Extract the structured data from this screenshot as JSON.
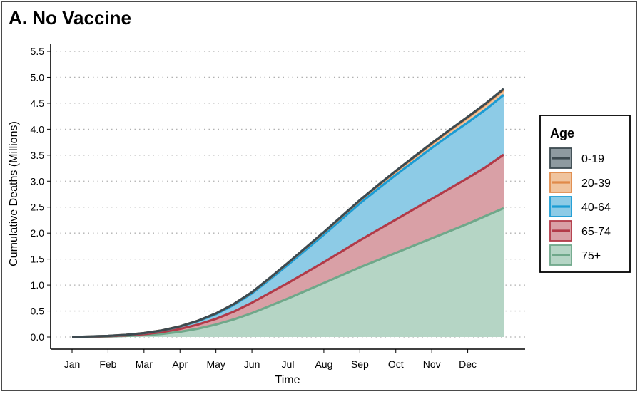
{
  "title": "A. No Vaccine",
  "chart_data": {
    "type": "area",
    "title": "A. No Vaccine",
    "xlabel": "Time",
    "ylabel": "Cumulative Deaths (Millions)",
    "ylim": [
      0,
      5.5
    ],
    "yticks": [
      "0.0",
      "0.5",
      "1.0",
      "1.5",
      "2.0",
      "2.5",
      "3.0",
      "3.5",
      "4.0",
      "4.5",
      "5.0",
      "5.5"
    ],
    "categories": [
      "Jan",
      "Feb",
      "Mar",
      "Apr",
      "May",
      "Jun",
      "Jul",
      "Aug",
      "Sep",
      "Oct",
      "Nov",
      "Dec"
    ],
    "x": [
      0,
      0.5,
      1,
      1.5,
      2,
      2.5,
      3,
      3.5,
      4,
      4.5,
      5,
      5.5,
      6,
      6.5,
      7,
      7.5,
      8,
      8.5,
      9,
      9.5,
      10,
      10.5,
      11,
      11.5,
      12
    ],
    "grid": "horizontal dotted",
    "legend_title": "Age",
    "legend_position": "right",
    "stacked": true,
    "series": [
      {
        "name": "75+",
        "color": "#6fa88a",
        "fill": "#b5d5c5",
        "values": [
          0.0,
          0.005,
          0.01,
          0.02,
          0.035,
          0.06,
          0.1,
          0.16,
          0.24,
          0.34,
          0.46,
          0.6,
          0.74,
          0.89,
          1.04,
          1.19,
          1.34,
          1.48,
          1.62,
          1.76,
          1.9,
          2.04,
          2.18,
          2.33,
          2.48
        ]
      },
      {
        "name": "65-74",
        "color": "#b23a48",
        "fill": "#d9a0a6",
        "values": [
          0.0,
          0.002,
          0.005,
          0.01,
          0.02,
          0.035,
          0.055,
          0.08,
          0.11,
          0.15,
          0.2,
          0.25,
          0.3,
          0.35,
          0.4,
          0.46,
          0.52,
          0.58,
          0.64,
          0.7,
          0.76,
          0.82,
          0.88,
          0.94,
          1.03
        ]
      },
      {
        "name": "40-64",
        "color": "#1b9cd4",
        "fill": "#8dcbe6",
        "values": [
          0.0,
          0.002,
          0.005,
          0.01,
          0.018,
          0.03,
          0.045,
          0.065,
          0.09,
          0.13,
          0.18,
          0.26,
          0.35,
          0.44,
          0.53,
          0.62,
          0.71,
          0.79,
          0.86,
          0.92,
          0.98,
          1.03,
          1.07,
          1.11,
          1.15
        ]
      },
      {
        "name": "20-39",
        "color": "#e08a4a",
        "fill": "#f0c49e",
        "values": [
          0.0,
          0.0,
          0.0,
          0.001,
          0.002,
          0.003,
          0.005,
          0.008,
          0.012,
          0.016,
          0.02,
          0.026,
          0.032,
          0.038,
          0.044,
          0.05,
          0.056,
          0.062,
          0.068,
          0.074,
          0.08,
          0.086,
          0.092,
          0.098,
          0.1
        ]
      },
      {
        "name": "0-19",
        "color": "#3d4a50",
        "fill": "#8e9aa0",
        "values": [
          0.0,
          0.0,
          0.0,
          0.0,
          0.0,
          0.0,
          0.001,
          0.001,
          0.002,
          0.002,
          0.003,
          0.004,
          0.005,
          0.006,
          0.007,
          0.008,
          0.009,
          0.01,
          0.011,
          0.012,
          0.013,
          0.014,
          0.015,
          0.016,
          0.017
        ]
      }
    ]
  }
}
